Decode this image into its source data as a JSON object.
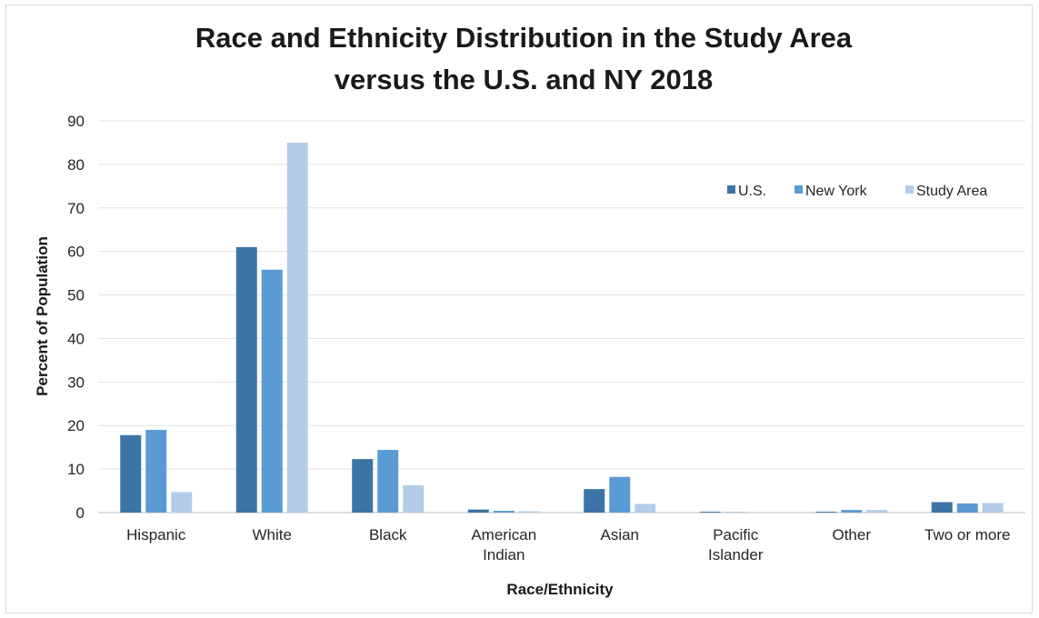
{
  "chart_data": {
    "type": "bar",
    "title_lines": [
      "Race and Ethnicity Distribution in the Study Area",
      "versus the U.S. and NY 2018"
    ],
    "xlabel": "Race/Ethnicity",
    "ylabel": "Percent of Population",
    "ylim": [
      0,
      90
    ],
    "yticks": [
      0,
      10,
      20,
      30,
      40,
      50,
      60,
      70,
      80,
      90
    ],
    "categories": [
      [
        "Hispanic"
      ],
      [
        "White"
      ],
      [
        "Black"
      ],
      [
        "American",
        "Indian"
      ],
      [
        "Asian"
      ],
      [
        "Pacific",
        "Islander"
      ],
      [
        "Other"
      ],
      [
        "Two or more"
      ]
    ],
    "series": [
      {
        "name": "U.S.",
        "color": "#3d74a6",
        "values": [
          17.8,
          61,
          12.3,
          0.7,
          5.4,
          0.2,
          0.2,
          2.4
        ]
      },
      {
        "name": "New York",
        "color": "#5a9bd5",
        "values": [
          19,
          55.8,
          14.4,
          0.4,
          8.2,
          0.1,
          0.6,
          2.1
        ]
      },
      {
        "name": "Study Area",
        "color": "#b3cde9",
        "values": [
          4.7,
          85,
          6.3,
          0.3,
          2,
          0.1,
          0.6,
          2.2
        ]
      }
    ],
    "grid": true,
    "legend_position": "top-right"
  }
}
